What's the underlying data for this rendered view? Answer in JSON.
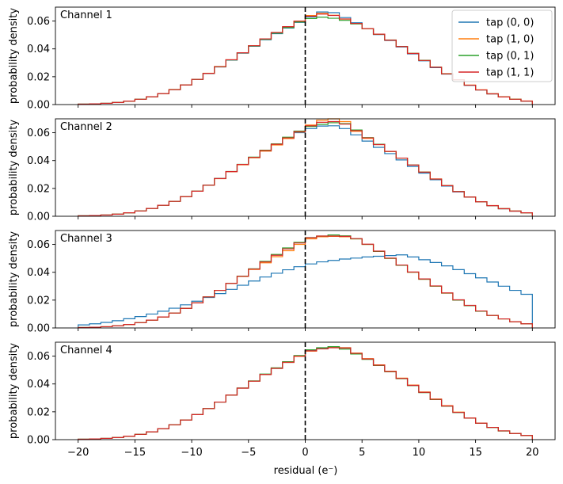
{
  "chart_data": {
    "type": "histogram-step",
    "layout": "4 stacked panels sharing x-axis",
    "xlabel": "residual (e⁻)",
    "ylabel": "probability density",
    "xlim": [
      -22,
      22
    ],
    "ylim": [
      0,
      0.07
    ],
    "xticks": [
      -20,
      -15,
      -10,
      -5,
      0,
      5,
      10,
      15,
      20
    ],
    "xtick_labels": [
      "−20",
      "−15",
      "−10",
      "−5",
      "0",
      "5",
      "10",
      "15",
      "20"
    ],
    "yticks": [
      0,
      0.02,
      0.04,
      0.06
    ],
    "ytick_labels": [
      "0.00",
      "0.02",
      "0.04",
      "0.06"
    ],
    "bin_edges_range": [
      -20,
      20
    ],
    "bin_count": 40,
    "bin_width": 1,
    "reference_line": {
      "x": 0,
      "style": "dashed",
      "color": "#000000"
    },
    "legend": {
      "location": "top-right of first panel",
      "entries": [
        "tap (0, 0)",
        "tap (1, 0)",
        "tap (0, 1)",
        "tap (1, 1)"
      ]
    },
    "series_colors": [
      "#1f77b4",
      "#ff7f0e",
      "#2ca02c",
      "#d62728"
    ],
    "panels": [
      {
        "title": "Channel 1",
        "series": [
          {
            "name": "tap (0, 0)",
            "values": [
              0.0003,
              0.0005,
              0.0009,
              0.0015,
              0.0025,
              0.0038,
              0.0056,
              0.0079,
              0.0107,
              0.0141,
              0.018,
              0.0223,
              0.027,
              0.0319,
              0.0369,
              0.0419,
              0.0466,
              0.0509,
              0.055,
              0.059,
              0.063,
              0.0665,
              0.066,
              0.0625,
              0.0588,
              0.0545,
              0.0503,
              0.046,
              0.0414,
              0.0364,
              0.0314,
              0.0265,
              0.0219,
              0.0177,
              0.0138,
              0.0105,
              0.0077,
              0.0055,
              0.0038,
              0.0025
            ]
          },
          {
            "name": "tap (1, 0)",
            "values": [
              0.0003,
              0.0005,
              0.0009,
              0.0015,
              0.0025,
              0.0038,
              0.0056,
              0.0079,
              0.0108,
              0.0142,
              0.0181,
              0.0225,
              0.0273,
              0.0322,
              0.0372,
              0.0423,
              0.0472,
              0.0517,
              0.0557,
              0.0598,
              0.064,
              0.0655,
              0.0642,
              0.0614,
              0.0583,
              0.0545,
              0.0505,
              0.0463,
              0.0418,
              0.0368,
              0.0318,
              0.0269,
              0.0222,
              0.0179,
              0.014,
              0.0106,
              0.0078,
              0.0056,
              0.0039,
              0.0026
            ]
          },
          {
            "name": "tap (0, 1)",
            "values": [
              0.0003,
              0.0005,
              0.0009,
              0.0015,
              0.0025,
              0.0038,
              0.0056,
              0.0079,
              0.0107,
              0.0141,
              0.0181,
              0.0224,
              0.0271,
              0.0321,
              0.0371,
              0.0421,
              0.0469,
              0.0513,
              0.0553,
              0.0593,
              0.0618,
              0.0628,
              0.062,
              0.0605,
              0.058,
              0.0546,
              0.0506,
              0.0464,
              0.0418,
              0.0368,
              0.0318,
              0.0268,
              0.0221,
              0.0178,
              0.0139,
              0.0105,
              0.0077,
              0.0055,
              0.0038,
              0.0025
            ]
          },
          {
            "name": "tap (1, 1)",
            "values": [
              0.0003,
              0.0005,
              0.0009,
              0.0015,
              0.0025,
              0.0038,
              0.0056,
              0.0079,
              0.0107,
              0.0141,
              0.0181,
              0.0224,
              0.0272,
              0.0322,
              0.0372,
              0.0423,
              0.0472,
              0.0518,
              0.056,
              0.06,
              0.0635,
              0.065,
              0.064,
              0.0615,
              0.0583,
              0.0546,
              0.0506,
              0.0463,
              0.0417,
              0.0367,
              0.0317,
              0.0268,
              0.0221,
              0.0178,
              0.0139,
              0.0105,
              0.0077,
              0.0055,
              0.0038,
              0.0025
            ]
          }
        ]
      },
      {
        "title": "Channel 2",
        "series": [
          {
            "name": "tap (0, 0)",
            "values": [
              0.0003,
              0.0005,
              0.0009,
              0.0015,
              0.0025,
              0.0038,
              0.0056,
              0.0079,
              0.0107,
              0.0141,
              0.018,
              0.0224,
              0.0271,
              0.0321,
              0.0371,
              0.0421,
              0.0469,
              0.0513,
              0.056,
              0.06,
              0.063,
              0.0648,
              0.065,
              0.063,
              0.0585,
              0.054,
              0.0495,
              0.045,
              0.0405,
              0.0358,
              0.031,
              0.0262,
              0.0217,
              0.0175,
              0.0137,
              0.0104,
              0.0076,
              0.0054,
              0.0037,
              0.0025
            ]
          },
          {
            "name": "tap (1, 0)",
            "values": [
              0.0003,
              0.0005,
              0.0009,
              0.0015,
              0.0025,
              0.0038,
              0.0056,
              0.0079,
              0.0107,
              0.0141,
              0.018,
              0.0223,
              0.027,
              0.032,
              0.037,
              0.042,
              0.0468,
              0.0512,
              0.0558,
              0.0605,
              0.0655,
              0.069,
              0.07,
              0.068,
              0.061,
              0.056,
              0.0515,
              0.0465,
              0.0418,
              0.0368,
              0.0318,
              0.0268,
              0.0221,
              0.0178,
              0.0139,
              0.0105,
              0.0077,
              0.0055,
              0.0038,
              0.0025
            ]
          },
          {
            "name": "tap (0, 1)",
            "values": [
              0.0003,
              0.0005,
              0.0009,
              0.0015,
              0.0025,
              0.0038,
              0.0056,
              0.0079,
              0.0107,
              0.0141,
              0.018,
              0.0223,
              0.0271,
              0.0322,
              0.0373,
              0.0425,
              0.0475,
              0.052,
              0.0568,
              0.0612,
              0.0645,
              0.066,
              0.0672,
              0.0665,
              0.062,
              0.0565,
              0.0517,
              0.0466,
              0.0418,
              0.0368,
              0.0317,
              0.0267,
              0.022,
              0.0177,
              0.0138,
              0.0104,
              0.0076,
              0.0054,
              0.0037,
              0.0025
            ]
          },
          {
            "name": "tap (1, 1)",
            "values": [
              0.0003,
              0.0005,
              0.0009,
              0.0015,
              0.0025,
              0.0038,
              0.0056,
              0.0079,
              0.0107,
              0.0141,
              0.018,
              0.0223,
              0.0271,
              0.0321,
              0.0372,
              0.0423,
              0.0472,
              0.0517,
              0.0563,
              0.0608,
              0.065,
              0.0675,
              0.068,
              0.0662,
              0.0615,
              0.0563,
              0.0515,
              0.0466,
              0.0418,
              0.0368,
              0.0317,
              0.0267,
              0.022,
              0.0177,
              0.0138,
              0.0104,
              0.0076,
              0.0054,
              0.0037,
              0.0025
            ]
          }
        ]
      },
      {
        "title": "Channel 3",
        "series": [
          {
            "name": "tap (0, 0)",
            "values": [
              0.0022,
              0.003,
              0.004,
              0.0052,
              0.0066,
              0.0082,
              0.01,
              0.012,
              0.0142,
              0.0166,
              0.0192,
              0.0219,
              0.0247,
              0.0277,
              0.0307,
              0.0337,
              0.0366,
              0.0393,
              0.0418,
              0.044,
              0.046,
              0.0475,
              0.0485,
              0.0495,
              0.0502,
              0.051,
              0.0515,
              0.052,
              0.0525,
              0.051,
              0.049,
              0.047,
              0.0446,
              0.0419,
              0.039,
              0.036,
              0.033,
              0.03,
              0.027,
              0.0242
            ]
          },
          {
            "name": "tap (1, 0)",
            "values": [
              0.0003,
              0.0005,
              0.0009,
              0.0015,
              0.0025,
              0.0038,
              0.0056,
              0.0079,
              0.0107,
              0.0141,
              0.018,
              0.0223,
              0.027,
              0.032,
              0.037,
              0.042,
              0.0468,
              0.0512,
              0.0555,
              0.06,
              0.064,
              0.0655,
              0.0658,
              0.0655,
              0.064,
              0.06,
              0.055,
              0.05,
              0.045,
              0.04,
              0.035,
              0.03,
              0.025,
              0.02,
              0.016,
              0.012,
              0.009,
              0.0065,
              0.0045,
              0.003
            ]
          },
          {
            "name": "tap (0, 1)",
            "values": [
              0.0003,
              0.0005,
              0.0009,
              0.0015,
              0.0025,
              0.0038,
              0.0056,
              0.0079,
              0.0107,
              0.0141,
              0.018,
              0.0223,
              0.027,
              0.032,
              0.0372,
              0.0425,
              0.0478,
              0.0528,
              0.0575,
              0.0615,
              0.065,
              0.066,
              0.0668,
              0.0662,
              0.064,
              0.06,
              0.055,
              0.05,
              0.045,
              0.04,
              0.035,
              0.03,
              0.025,
              0.02,
              0.016,
              0.012,
              0.009,
              0.0065,
              0.0045,
              0.003
            ]
          },
          {
            "name": "tap (1, 1)",
            "values": [
              0.0003,
              0.0005,
              0.0009,
              0.0015,
              0.0025,
              0.0038,
              0.0056,
              0.0079,
              0.0107,
              0.0141,
              0.018,
              0.0223,
              0.027,
              0.032,
              0.0371,
              0.0423,
              0.0474,
              0.0522,
              0.0568,
              0.061,
              0.0648,
              0.066,
              0.066,
              0.0658,
              0.0642,
              0.0602,
              0.0552,
              0.0502,
              0.0452,
              0.0402,
              0.0352,
              0.0302,
              0.0252,
              0.0202,
              0.0162,
              0.0122,
              0.009,
              0.0065,
              0.0045,
              0.003
            ]
          }
        ]
      },
      {
        "title": "Channel 4",
        "series": [
          {
            "name": "tap (0, 0)",
            "values": [
              0.0003,
              0.0005,
              0.0009,
              0.0015,
              0.0025,
              0.0038,
              0.0056,
              0.0079,
              0.0107,
              0.0141,
              0.018,
              0.0223,
              0.027,
              0.032,
              0.037,
              0.042,
              0.0468,
              0.0512,
              0.0555,
              0.06,
              0.064,
              0.0655,
              0.0665,
              0.066,
              0.062,
              0.058,
              0.0535,
              0.049,
              0.044,
              0.039,
              0.034,
              0.029,
              0.0242,
              0.0196,
              0.0155,
              0.0118,
              0.0088,
              0.0063,
              0.0044,
              0.003
            ]
          },
          {
            "name": "tap (1, 0)",
            "values": [
              0.0003,
              0.0005,
              0.0009,
              0.0015,
              0.0025,
              0.0038,
              0.0056,
              0.0079,
              0.0107,
              0.0141,
              0.018,
              0.0223,
              0.027,
              0.032,
              0.037,
              0.042,
              0.0468,
              0.0512,
              0.0555,
              0.0598,
              0.0636,
              0.0652,
              0.0662,
              0.066,
              0.0622,
              0.0582,
              0.0537,
              0.0492,
              0.0442,
              0.0392,
              0.0342,
              0.0292,
              0.0244,
              0.0198,
              0.0156,
              0.0119,
              0.0088,
              0.0063,
              0.0044,
              0.003
            ]
          },
          {
            "name": "tap (0, 1)",
            "values": [
              0.0003,
              0.0005,
              0.0009,
              0.0015,
              0.0025,
              0.0038,
              0.0056,
              0.0079,
              0.0107,
              0.0141,
              0.018,
              0.0223,
              0.027,
              0.032,
              0.0371,
              0.0422,
              0.0471,
              0.0516,
              0.056,
              0.0604,
              0.0645,
              0.066,
              0.0668,
              0.065,
              0.0615,
              0.0577,
              0.0533,
              0.0488,
              0.0438,
              0.0388,
              0.0338,
              0.0288,
              0.024,
              0.0195,
              0.0154,
              0.0117,
              0.0087,
              0.0062,
              0.0043,
              0.0029
            ]
          },
          {
            "name": "tap (1, 1)",
            "values": [
              0.0003,
              0.0005,
              0.0009,
              0.0015,
              0.0025,
              0.0038,
              0.0056,
              0.0079,
              0.0107,
              0.0141,
              0.018,
              0.0223,
              0.027,
              0.032,
              0.037,
              0.042,
              0.0468,
              0.0512,
              0.0556,
              0.06,
              0.0638,
              0.0652,
              0.066,
              0.0658,
              0.062,
              0.058,
              0.0535,
              0.049,
              0.044,
              0.039,
              0.034,
              0.029,
              0.0242,
              0.0196,
              0.0155,
              0.0118,
              0.0088,
              0.0063,
              0.0044,
              0.003
            ]
          }
        ]
      }
    ]
  }
}
